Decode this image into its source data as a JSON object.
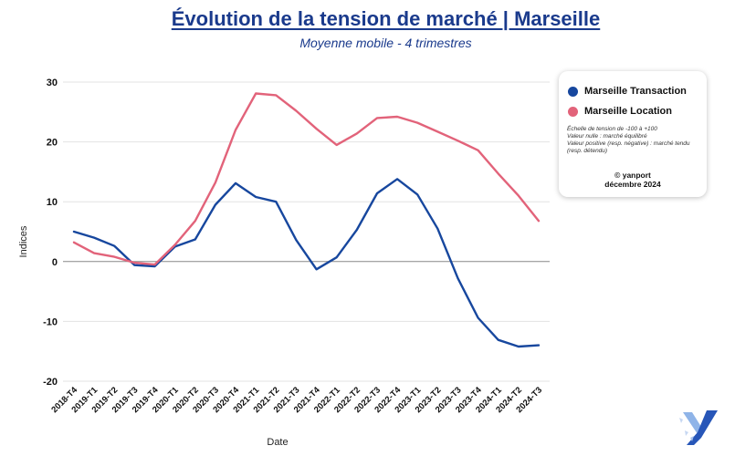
{
  "title": "Évolution de la tension de marché | Marseille",
  "subtitle": "Moyenne mobile - 4 trimestres",
  "legend": {
    "items": [
      {
        "label": "Marseille Transaction",
        "color": "#17479e"
      },
      {
        "label": "Marseille Location",
        "color": "#e2637a"
      }
    ],
    "notes": [
      "Échelle de tension de -100 à +100",
      "Valeur nulle : marché équilibré",
      "Valeur positive (resp. négative) : marché tendu (resp. détendu)"
    ],
    "credit_brand": "yanport",
    "credit_date": "décembre 2024"
  },
  "logo_icon": "yanport-logo-icon",
  "chart_data": {
    "type": "line",
    "xlabel": "Date",
    "ylabel": "Indices",
    "ylim": [
      -20,
      30
    ],
    "yticks": [
      30,
      20,
      10,
      0,
      -10,
      -20
    ],
    "grid": true,
    "legend_position": "right",
    "categories": [
      "2018-T4",
      "2019-T1",
      "2019-T2",
      "2019-T3",
      "2019-T4",
      "2020-T1",
      "2020-T2",
      "2020-T3",
      "2020-T4",
      "2021-T1",
      "2021-T2",
      "2021-T3",
      "2021-T4",
      "2022-T1",
      "2022-T2",
      "2022-T3",
      "2022-T4",
      "2023-T1",
      "2023-T2",
      "2023-T3",
      "2023-T4",
      "2024-T1",
      "2024-T2",
      "2024-T3"
    ],
    "series": [
      {
        "name": "Marseille Transaction",
        "color": "#17479e",
        "values": [
          5,
          4,
          2.6,
          -0.6,
          -0.8,
          2.5,
          3.7,
          9.5,
          13.1,
          10.8,
          10,
          3.6,
          -1.3,
          0.7,
          5.3,
          11.4,
          13.8,
          11.2,
          5.5,
          -2.8,
          -9.4,
          -13.1,
          -14.2,
          -14
        ]
      },
      {
        "name": "Marseille Location",
        "color": "#e2637a",
        "values": [
          3.2,
          1.4,
          0.8,
          -0.2,
          -0.5,
          2.8,
          6.8,
          13.2,
          22,
          28.1,
          27.8,
          25.2,
          22.2,
          19.5,
          21.4,
          24,
          24.2,
          23.2,
          21.7,
          20.2,
          18.6,
          14.7,
          11,
          6.8
        ]
      }
    ]
  }
}
